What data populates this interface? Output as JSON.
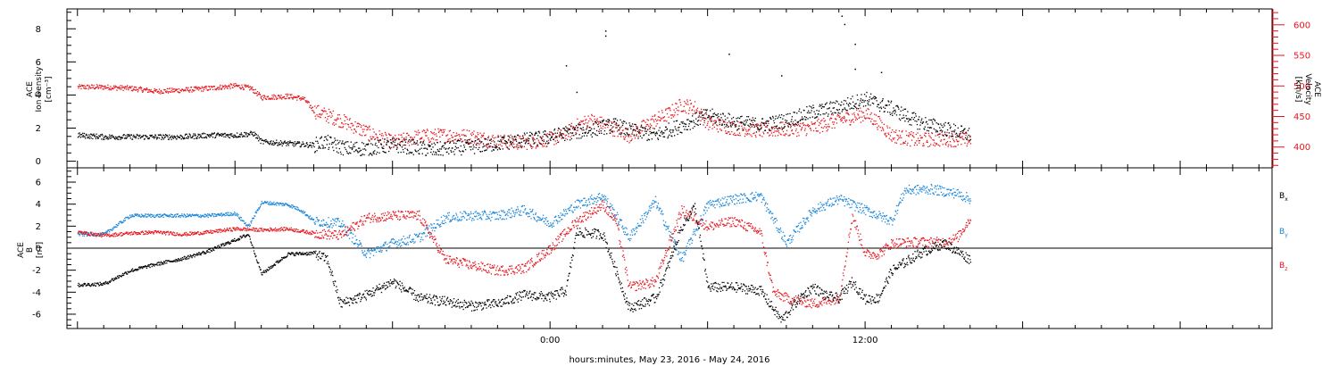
{
  "xlabel": "hours:minutes, May 23, 2016 - May 24, 2016",
  "colors": {
    "black": "#000000",
    "red": "#e8141c",
    "blue": "#1a86d8"
  },
  "chart_data": [
    {
      "type": "scatter",
      "panel": "plasma",
      "x_unit": "hours since 2016-05-23 00:00 UT",
      "xlim": [
        -18.4,
        27.5
      ],
      "x_ticks": [
        {
          "x": 0,
          "label": "0:00"
        },
        {
          "x": 12,
          "label": "12:00"
        }
      ],
      "left_axis": {
        "label_lines": [
          "ACE",
          "Ion Density"
        ],
        "units": "[cm⁻³]",
        "ylim": [
          -0.4,
          9.2
        ],
        "ticks": [
          0,
          2,
          4,
          6,
          8
        ]
      },
      "right_axis": {
        "label_lines": [
          "ACE",
          "Velocity"
        ],
        "units": "[km/s]",
        "ylim": [
          366,
          626
        ],
        "ticks": [
          400,
          450,
          500,
          550,
          600
        ]
      },
      "series": [
        {
          "axis": "left",
          "color": "black",
          "points": [
            [
              -18.0,
              1.6
            ],
            [
              -17.0,
              1.5
            ],
            [
              -16.0,
              1.5
            ],
            [
              -15.0,
              1.5
            ],
            [
              -14.0,
              1.5
            ],
            [
              -13.0,
              1.6
            ],
            [
              -12.0,
              1.6
            ],
            [
              -11.3,
              1.7
            ],
            [
              -11.0,
              1.2
            ],
            [
              -10.0,
              1.1
            ],
            [
              -9.0,
              1.0
            ],
            [
              -8.6,
              1.2
            ],
            [
              -7.8,
              0.8
            ],
            [
              -7.0,
              0.8
            ],
            [
              -6.0,
              1.0
            ],
            [
              -5.3,
              0.9
            ],
            [
              -4.5,
              0.7
            ],
            [
              -4.0,
              0.8
            ],
            [
              -3.0,
              0.9
            ],
            [
              -2.0,
              1.1
            ],
            [
              -1.0,
              1.3
            ],
            [
              0.0,
              1.5
            ],
            [
              0.5,
              1.7
            ],
            [
              1.0,
              1.8
            ],
            [
              1.5,
              1.9
            ],
            [
              2.0,
              2.1
            ],
            [
              2.5,
              2.2
            ],
            [
              3.0,
              1.9
            ],
            [
              4.0,
              1.6
            ],
            [
              5.0,
              2.2
            ],
            [
              6.0,
              2.8
            ],
            [
              7.0,
              2.4
            ],
            [
              8.0,
              2.2
            ],
            [
              9.0,
              2.5
            ],
            [
              10.0,
              3.0
            ],
            [
              11.0,
              3.3
            ],
            [
              12.0,
              3.8
            ],
            [
              13.0,
              3.2
            ],
            [
              13.5,
              2.8
            ],
            [
              14.0,
              2.4
            ],
            [
              15.0,
              2.0
            ],
            [
              16.0,
              1.6
            ]
          ],
          "spikes": [
            [
              0.6,
              5.8
            ],
            [
              2.1,
              7.6
            ],
            [
              2.1,
              7.9
            ],
            [
              6.8,
              6.5
            ],
            [
              8.8,
              5.2
            ],
            [
              11.1,
              8.8
            ],
            [
              11.2,
              8.3
            ],
            [
              11.6,
              7.1
            ],
            [
              11.6,
              5.6
            ],
            [
              12.6,
              5.4
            ],
            [
              1.0,
              4.2
            ]
          ]
        },
        {
          "axis": "right",
          "color": "red",
          "points": [
            [
              -18.0,
              499
            ],
            [
              -17.0,
              499
            ],
            [
              -16.0,
              497
            ],
            [
              -15.0,
              492
            ],
            [
              -14.0,
              494
            ],
            [
              -13.0,
              497
            ],
            [
              -12.0,
              501
            ],
            [
              -11.4,
              497
            ],
            [
              -11.0,
              482
            ],
            [
              -10.0,
              484
            ],
            [
              -9.4,
              480
            ],
            [
              -9.0,
              460
            ],
            [
              -8.0,
              445
            ],
            [
              -7.0,
              425
            ],
            [
              -6.0,
              408
            ],
            [
              -5.0,
              418
            ],
            [
              -4.0,
              420
            ],
            [
              -3.0,
              418
            ],
            [
              -2.0,
              410
            ],
            [
              -1.0,
              408
            ],
            [
              0.0,
              414
            ],
            [
              0.5,
              420
            ],
            [
              1.0,
              435
            ],
            [
              1.5,
              445
            ],
            [
              2.0,
              438
            ],
            [
              3.0,
              420
            ],
            [
              4.0,
              445
            ],
            [
              4.5,
              455
            ],
            [
              5.0,
              470
            ],
            [
              5.5,
              465
            ],
            [
              6.0,
              440
            ],
            [
              7.0,
              432
            ],
            [
              8.0,
              428
            ],
            [
              9.0,
              430
            ],
            [
              10.0,
              432
            ],
            [
              11.0,
              445
            ],
            [
              12.0,
              455
            ],
            [
              12.4,
              444
            ],
            [
              13.0,
              420
            ],
            [
              14.0,
              412
            ],
            [
              15.0,
              414
            ],
            [
              16.0,
              412
            ]
          ]
        }
      ]
    },
    {
      "type": "scatter",
      "panel": "magnetic field",
      "x_unit": "hours since 2016-05-23 00:00 UT",
      "xlim": [
        -18.4,
        27.5
      ],
      "x_ticks": [
        {
          "x": 0,
          "label": "0:00"
        },
        {
          "x": 12,
          "label": "12:00"
        }
      ],
      "left_axis": {
        "label_lines": [
          "ACE",
          "B"
        ],
        "units": "[nT]",
        "ylim": [
          -7.3,
          7.3
        ],
        "ticks": [
          -6,
          -4,
          -2,
          0,
          2,
          4,
          6
        ]
      },
      "zero_line": true,
      "legend": [
        {
          "text": "B",
          "sub": "x",
          "color": "black"
        },
        {
          "text": "B",
          "sub": "y",
          "color": "blue"
        },
        {
          "text": "B",
          "sub": "z",
          "color": "red"
        }
      ],
      "series": [
        {
          "name": "Bx",
          "color": "black",
          "points": [
            [
              -18.0,
              -3.3
            ],
            [
              -17.0,
              -3.2
            ],
            [
              -16.0,
              -2.0
            ],
            [
              -15.0,
              -1.4
            ],
            [
              -14.0,
              -0.9
            ],
            [
              -13.0,
              -0.2
            ],
            [
              -12.0,
              0.8
            ],
            [
              -11.5,
              1.3
            ],
            [
              -11.0,
              -2.3
            ],
            [
              -10.0,
              -0.5
            ],
            [
              -9.0,
              -0.4
            ],
            [
              -8.5,
              -1.0
            ],
            [
              -8.0,
              -5.0
            ],
            [
              -7.0,
              -4.2
            ],
            [
              -6.0,
              -3.0
            ],
            [
              -5.0,
              -4.5
            ],
            [
              -4.0,
              -4.8
            ],
            [
              -3.0,
              -5.2
            ],
            [
              -2.0,
              -5.0
            ],
            [
              -1.0,
              -4.2
            ],
            [
              0.0,
              -4.4
            ],
            [
              0.6,
              -3.8
            ],
            [
              1.0,
              1.5
            ],
            [
              2.0,
              1.3
            ],
            [
              2.5,
              -2.0
            ],
            [
              3.0,
              -5.4
            ],
            [
              4.0,
              -4.5
            ],
            [
              4.5,
              -1.5
            ],
            [
              5.0,
              2.0
            ],
            [
              5.5,
              3.8
            ],
            [
              6.0,
              -3.5
            ],
            [
              7.0,
              -3.5
            ],
            [
              8.0,
              -3.8
            ],
            [
              8.8,
              -6.5
            ],
            [
              9.5,
              -4.5
            ],
            [
              10.0,
              -3.5
            ],
            [
              10.5,
              -4.3
            ],
            [
              11.0,
              -4.5
            ],
            [
              11.5,
              -3.0
            ],
            [
              12.0,
              -4.6
            ],
            [
              12.5,
              -4.5
            ],
            [
              13.0,
              -2.0
            ],
            [
              14.0,
              -0.5
            ],
            [
              15.0,
              0.5
            ],
            [
              16.0,
              -1.0
            ]
          ]
        },
        {
          "name": "By",
          "color": "blue",
          "points": [
            [
              -18.0,
              1.3
            ],
            [
              -17.0,
              1.3
            ],
            [
              -16.0,
              3.0
            ],
            [
              -15.0,
              3.0
            ],
            [
              -14.0,
              3.0
            ],
            [
              -13.0,
              3.0
            ],
            [
              -12.0,
              3.2
            ],
            [
              -11.5,
              2.0
            ],
            [
              -11.0,
              4.2
            ],
            [
              -10.0,
              4.0
            ],
            [
              -9.5,
              3.5
            ],
            [
              -9.0,
              2.5
            ],
            [
              -8.0,
              2.3
            ],
            [
              -7.0,
              -0.5
            ],
            [
              -6.0,
              0.5
            ],
            [
              -5.0,
              1.0
            ],
            [
              -4.0,
              2.8
            ],
            [
              -3.0,
              3.0
            ],
            [
              -2.0,
              3.0
            ],
            [
              -1.0,
              3.5
            ],
            [
              0.0,
              2.3
            ],
            [
              1.0,
              4.0
            ],
            [
              2.0,
              4.8
            ],
            [
              2.5,
              3.0
            ],
            [
              3.0,
              1.0
            ],
            [
              4.0,
              4.3
            ],
            [
              5.0,
              -1.0
            ],
            [
              6.0,
              4.0
            ],
            [
              7.0,
              4.5
            ],
            [
              8.0,
              4.8
            ],
            [
              9.0,
              0.5
            ],
            [
              10.0,
              3.5
            ],
            [
              11.0,
              4.5
            ],
            [
              11.5,
              4.0
            ],
            [
              12.0,
              3.5
            ],
            [
              13.0,
              2.5
            ],
            [
              13.5,
              5.3
            ],
            [
              14.5,
              5.4
            ],
            [
              15.5,
              5.0
            ],
            [
              16.0,
              4.5
            ]
          ]
        },
        {
          "name": "Bz",
          "color": "red",
          "points": [
            [
              -18.0,
              1.5
            ],
            [
              -17.0,
              1.2
            ],
            [
              -16.0,
              1.4
            ],
            [
              -15.0,
              1.5
            ],
            [
              -14.0,
              1.3
            ],
            [
              -13.0,
              1.5
            ],
            [
              -12.0,
              1.8
            ],
            [
              -11.0,
              1.7
            ],
            [
              -10.0,
              1.8
            ],
            [
              -9.0,
              1.4
            ],
            [
              -8.0,
              1.2
            ],
            [
              -7.0,
              2.8
            ],
            [
              -6.0,
              3.0
            ],
            [
              -5.0,
              3.0
            ],
            [
              -4.0,
              -1.0
            ],
            [
              -3.0,
              -1.5
            ],
            [
              -2.0,
              -2.0
            ],
            [
              -1.0,
              -1.8
            ],
            [
              0.0,
              0.0
            ],
            [
              1.0,
              2.5
            ],
            [
              2.0,
              4.0
            ],
            [
              2.5,
              2.5
            ],
            [
              3.0,
              -3.5
            ],
            [
              4.0,
              -3.0
            ],
            [
              5.0,
              3.5
            ],
            [
              6.0,
              2.0
            ],
            [
              7.0,
              2.5
            ],
            [
              8.0,
              1.5
            ],
            [
              8.5,
              -4.0
            ],
            [
              9.0,
              -4.5
            ],
            [
              10.0,
              -5.0
            ],
            [
              11.0,
              -4.5
            ],
            [
              11.5,
              3.0
            ],
            [
              12.0,
              -0.5
            ],
            [
              12.5,
              -0.5
            ],
            [
              13.0,
              0.5
            ],
            [
              14.0,
              0.6
            ],
            [
              15.0,
              0.6
            ],
            [
              15.5,
              1.0
            ],
            [
              16.0,
              2.8
            ]
          ]
        }
      ]
    }
  ]
}
